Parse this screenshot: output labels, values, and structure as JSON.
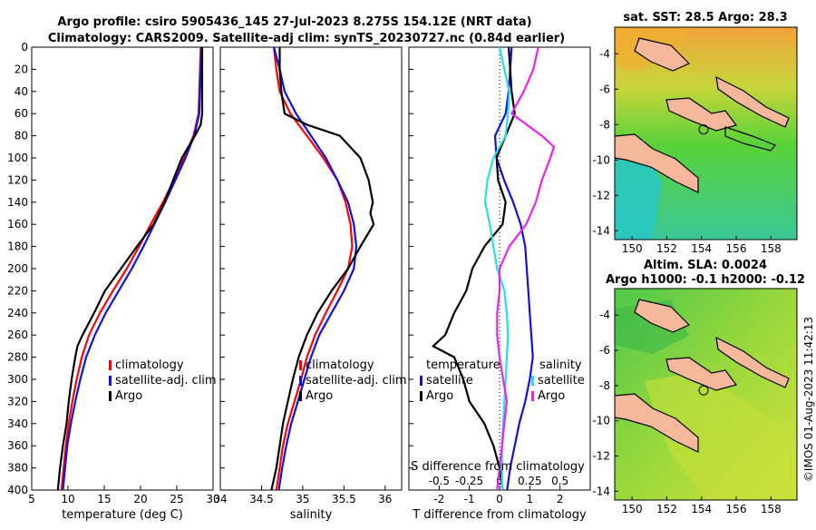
{
  "header": {
    "title_line1": "Argo profile: csiro 5905436_145 27-Jul-2023 8.275S 154.12E (NRT data)",
    "title_line2": "Climatology: CARS2009. Satellite-adj clim: synTS_20230727.nc (0.84d earlier)"
  },
  "colors": {
    "climatology": "#ff0000",
    "satellite": "#1010e0",
    "argo": "#000000",
    "sat_diff_s": "#22e0e8",
    "argo_diff_s": "#ee22ee",
    "land": "#f6b89a"
  },
  "chart_data": [
    {
      "type": "line",
      "panel": "temperature",
      "xlabel": "temperature (deg C)",
      "ylabel": "",
      "xlim": [
        5,
        30
      ],
      "ylim": [
        400,
        0
      ],
      "xticks": [
        5,
        10,
        15,
        20,
        25,
        30
      ],
      "xtick_labels": [
        "5",
        "10",
        "15",
        "20",
        "25",
        "30"
      ],
      "yticks": [
        0,
        20,
        40,
        60,
        80,
        100,
        120,
        140,
        160,
        180,
        200,
        220,
        240,
        260,
        280,
        300,
        320,
        340,
        360,
        380,
        400
      ],
      "ytick_labels": [
        "0",
        "20",
        "40",
        "60",
        "80",
        "100",
        "120",
        "140",
        "160",
        "180",
        "200",
        "220",
        "240",
        "260",
        "280",
        "300",
        "320",
        "340",
        "360",
        "380",
        "400"
      ],
      "legend": [
        "climatology",
        "satellite-adj. clim",
        "Argo"
      ],
      "legend_loc": "lower-right",
      "series": [
        {
          "name": "climatology",
          "color": "#ff0000",
          "depth": [
            0,
            20,
            40,
            60,
            80,
            100,
            120,
            140,
            160,
            180,
            200,
            220,
            240,
            260,
            280,
            300,
            320,
            340,
            360,
            380,
            400
          ],
          "values": [
            28.3,
            28.2,
            28.1,
            28.0,
            27.3,
            26.0,
            24.6,
            23.1,
            21.4,
            19.8,
            18.1,
            16.2,
            14.4,
            12.9,
            11.9,
            11.2,
            10.6,
            10.1,
            9.7,
            9.4,
            9.1
          ]
        },
        {
          "name": "satellite-adj. clim",
          "color": "#1010e0",
          "depth": [
            0,
            20,
            40,
            60,
            80,
            100,
            120,
            140,
            160,
            180,
            200,
            220,
            240,
            260,
            280,
            300,
            320,
            340,
            360,
            380,
            400
          ],
          "values": [
            28.4,
            28.3,
            28.2,
            28.1,
            27.4,
            26.2,
            24.8,
            23.4,
            21.9,
            20.4,
            18.8,
            17.0,
            15.2,
            13.7,
            12.5,
            11.7,
            11.0,
            10.4,
            9.9,
            9.6,
            9.3
          ]
        },
        {
          "name": "Argo",
          "color": "#000000",
          "depth": [
            0,
            20,
            40,
            60,
            70,
            80,
            100,
            120,
            140,
            160,
            180,
            200,
            220,
            240,
            260,
            270,
            280,
            300,
            320,
            340,
            360,
            380,
            400
          ],
          "values": [
            28.5,
            28.5,
            28.5,
            28.5,
            28.3,
            27.5,
            25.7,
            24.5,
            23.3,
            21.8,
            19.5,
            17.3,
            15.1,
            13.6,
            12.0,
            11.3,
            11.0,
            10.5,
            10.1,
            9.8,
            9.3,
            8.9,
            8.6
          ]
        }
      ]
    },
    {
      "type": "line",
      "panel": "salinity",
      "xlabel": "salinity",
      "ylabel": "",
      "xlim": [
        34,
        36.2
      ],
      "ylim": [
        400,
        0
      ],
      "xticks": [
        34,
        34.5,
        35,
        35.5,
        36
      ],
      "xtick_labels": [
        "34",
        "34.5",
        "35",
        "35.5",
        "36"
      ],
      "legend": [
        "climatology",
        "satellite-adj. clim",
        "Argo"
      ],
      "legend_loc": "lower-right",
      "series": [
        {
          "name": "climatology",
          "color": "#ff0000",
          "depth": [
            0,
            20,
            40,
            60,
            80,
            100,
            120,
            140,
            160,
            180,
            200,
            220,
            240,
            260,
            280,
            300,
            320,
            340,
            360,
            380,
            400
          ],
          "values": [
            34.65,
            34.68,
            34.72,
            34.85,
            35.05,
            35.25,
            35.42,
            35.52,
            35.58,
            35.6,
            35.55,
            35.42,
            35.28,
            35.15,
            35.05,
            34.98,
            34.9,
            34.82,
            34.76,
            34.72,
            34.68
          ]
        },
        {
          "name": "satellite-adj. clim",
          "color": "#1010e0",
          "depth": [
            0,
            20,
            40,
            60,
            80,
            100,
            120,
            140,
            160,
            180,
            200,
            220,
            240,
            260,
            280,
            300,
            320,
            340,
            360,
            380,
            400
          ],
          "values": [
            34.65,
            34.72,
            34.78,
            34.92,
            35.1,
            35.28,
            35.42,
            35.55,
            35.62,
            35.65,
            35.62,
            35.5,
            35.35,
            35.2,
            35.1,
            35.02,
            34.94,
            34.86,
            34.8,
            34.75,
            34.71
          ]
        },
        {
          "name": "Argo",
          "color": "#000000",
          "depth": [
            0,
            20,
            40,
            60,
            70,
            80,
            100,
            120,
            140,
            150,
            160,
            180,
            200,
            220,
            240,
            260,
            280,
            300,
            320,
            340,
            360,
            380,
            400
          ],
          "values": [
            34.72,
            34.72,
            34.74,
            34.78,
            35.05,
            35.45,
            35.7,
            35.8,
            35.85,
            35.82,
            35.86,
            35.7,
            35.55,
            35.35,
            35.18,
            35.05,
            34.95,
            34.88,
            34.82,
            34.76,
            34.72,
            34.68,
            34.62
          ]
        }
      ]
    },
    {
      "type": "line",
      "panel": "differences",
      "xlabel": "T difference from climatology",
      "xlabel_top": "S difference from climatology",
      "xlim": [
        -3,
        3
      ],
      "ylim": [
        400,
        0
      ],
      "xticks": [
        -2,
        -1,
        0,
        1,
        2
      ],
      "xtick_labels": [
        "-2",
        "-1",
        "0",
        "1",
        "2"
      ],
      "sticks": [
        -0.5,
        -0.25,
        0,
        0.25,
        0.5
      ],
      "stick_labels": [
        "-0.5",
        "-0.25",
        "0",
        "0.25",
        "0.5"
      ],
      "legend_t": [
        "temperature",
        "satellite",
        "Argo"
      ],
      "legend_s": [
        "salinity",
        "satellite",
        "Argo"
      ],
      "series": [
        {
          "name": "T satellite",
          "color": "#1010e0",
          "depth": [
            0,
            20,
            40,
            60,
            80,
            100,
            120,
            140,
            160,
            180,
            200,
            220,
            240,
            260,
            280,
            300,
            320,
            340,
            360,
            380,
            400
          ],
          "values": [
            0.4,
            0.35,
            0.3,
            0.2,
            -0.15,
            -0.1,
            0.15,
            0.45,
            0.7,
            0.85,
            0.9,
            0.95,
            1.0,
            1.05,
            1.1,
            1.0,
            0.85,
            0.65,
            0.5,
            0.35,
            0.25
          ]
        },
        {
          "name": "T Argo",
          "color": "#000000",
          "depth": [
            0,
            20,
            40,
            60,
            80,
            100,
            120,
            140,
            160,
            180,
            200,
            220,
            240,
            260,
            270,
            280,
            300,
            320,
            340,
            360,
            380,
            400
          ],
          "values": [
            0.3,
            0.35,
            0.4,
            0.5,
            0.2,
            -0.1,
            -0.05,
            0.2,
            0.1,
            -0.5,
            -0.9,
            -1.1,
            -1.5,
            -1.8,
            -2.2,
            -1.5,
            -1.2,
            -1.0,
            -0.5,
            -0.2,
            0.0,
            0.1
          ]
        },
        {
          "name": "S satellite",
          "color": "#22e0e8",
          "depth": [
            0,
            20,
            40,
            60,
            80,
            100,
            120,
            140,
            160,
            180,
            200,
            220,
            240,
            260,
            280,
            300,
            320,
            340,
            360,
            380,
            400
          ],
          "values": [
            0.0,
            0.04,
            0.08,
            0.07,
            0.05,
            -0.05,
            -0.1,
            -0.12,
            -0.08,
            -0.05,
            -0.02,
            0.04,
            0.06,
            0.07,
            0.06,
            0.05,
            0.04,
            0.03,
            0.02,
            0.02,
            0.02
          ]
        },
        {
          "name": "S Argo",
          "color": "#ee22ee",
          "depth": [
            0,
            20,
            40,
            60,
            80,
            90,
            100,
            120,
            140,
            160,
            180,
            200,
            220,
            240,
            260,
            280,
            300,
            320,
            340,
            360,
            380,
            400
          ],
          "values": [
            0.32,
            0.28,
            0.2,
            0.1,
            0.35,
            0.45,
            0.42,
            0.35,
            0.3,
            0.22,
            0.08,
            0.0,
            0.0,
            -0.02,
            -0.02,
            0.0,
            0.03,
            0.06,
            0.04,
            0.02,
            0.0,
            -0.02
          ]
        }
      ]
    },
    {
      "type": "heatmap",
      "panel": "sst_map",
      "title": "sat. SST: 28.5 Argo: 28.3",
      "xlim": [
        149,
        159.5
      ],
      "ylim": [
        -14.5,
        -2.5
      ],
      "xticks": [
        150,
        152,
        154,
        156,
        158
      ],
      "xtick_labels": [
        "150",
        "152",
        "154",
        "156",
        "158"
      ],
      "yticks": [
        -4,
        -6,
        -8,
        -10,
        -12,
        -14
      ],
      "ytick_labels": [
        "-4",
        "-6",
        "-8",
        "-10",
        "-12",
        "-14"
      ],
      "float_position": [
        154.12,
        -8.275
      ]
    },
    {
      "type": "heatmap",
      "panel": "sla_map",
      "title_line1": "Altim. SLA: 0.0024",
      "title_line2": "Argo h1000: -0.1 h2000: -0.12",
      "xlim": [
        149,
        159.5
      ],
      "ylim": [
        -14.5,
        -2.5
      ],
      "xticks": [
        150,
        152,
        154,
        156,
        158
      ],
      "xtick_labels": [
        "150",
        "152",
        "154",
        "156",
        "158"
      ],
      "yticks": [
        -4,
        -6,
        -8,
        -10,
        -12,
        -14
      ],
      "ytick_labels": [
        "-4",
        "-6",
        "-8",
        "-10",
        "-12",
        "-14"
      ],
      "float_position": [
        154.12,
        -8.275
      ]
    }
  ],
  "footer": {
    "credit": "©IMOS 01-Aug-2023 11:42:13"
  }
}
